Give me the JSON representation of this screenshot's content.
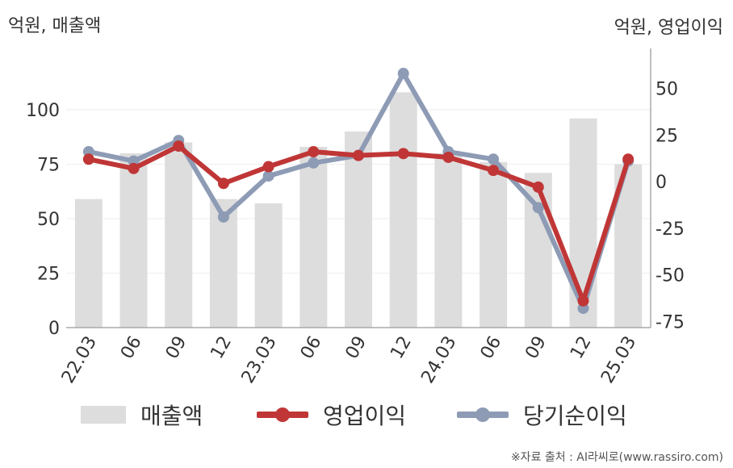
{
  "units": {
    "left": "억원, 매출액",
    "right": "억원, 영업이익"
  },
  "source": "※자료 출처 : AI라씨로(www.rassiro.com)",
  "colors": {
    "revenue": "#dddddd",
    "operating_profit": "#c03636",
    "net_income": "#8e9bb5",
    "grid": "#eeeeee",
    "axis": "#aaaaaa",
    "text": "#333333"
  },
  "chart_data": {
    "type": "bar+line",
    "categories": [
      "22.03",
      "06",
      "09",
      "12",
      "23.03",
      "06",
      "09",
      "12",
      "24.03",
      "06",
      "09",
      "12",
      "25.03"
    ],
    "y_left": {
      "ticks": [
        0,
        25,
        50,
        75,
        100
      ],
      "range": [
        0,
        120
      ]
    },
    "y_right": {
      "ticks": [
        -75,
        -50,
        -25,
        0,
        25,
        50
      ],
      "range": [
        -80,
        60
      ]
    },
    "grid": true,
    "legend_placement": "bottom",
    "series": [
      {
        "name": "매출액",
        "type": "bar",
        "axis": "left",
        "color": "#dddddd",
        "values": [
          59,
          80,
          85,
          59,
          57,
          83,
          90,
          108,
          80,
          76,
          71,
          96,
          75
        ]
      },
      {
        "name": "영업이익",
        "type": "line",
        "axis": "right",
        "color": "#c03636",
        "values": [
          12,
          7,
          19,
          -1,
          8,
          16,
          14,
          15,
          13,
          6,
          -3,
          -64,
          12
        ]
      },
      {
        "name": "당기순이익",
        "type": "line",
        "axis": "right",
        "color": "#8e9bb5",
        "values": [
          16,
          11,
          22,
          -19,
          3,
          10,
          14,
          58,
          16,
          12,
          -14,
          -68,
          11
        ]
      }
    ]
  }
}
